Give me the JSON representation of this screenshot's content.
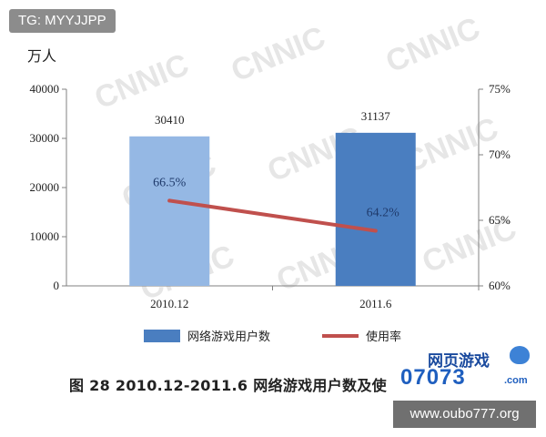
{
  "watermark_tag": "TG: MYYJJPP",
  "chart_data": {
    "type": "bar",
    "categories": [
      "2010.12",
      "2011.6"
    ],
    "series": [
      {
        "name": "网络游戏用户数",
        "type": "bar",
        "axis": "left",
        "values": [
          30410,
          31137
        ],
        "labels": [
          "30410",
          "31137"
        ],
        "colors": [
          "#95b8e4",
          "#4a7ec0"
        ]
      },
      {
        "name": "使用率",
        "type": "line",
        "axis": "right",
        "values": [
          66.5,
          64.2
        ],
        "labels": [
          "66.5%",
          "64.2%"
        ],
        "color": "#c0504d"
      }
    ],
    "y_left": {
      "unit": "万人",
      "ylim": [
        0,
        40000
      ],
      "ticks": [
        "40000",
        "30000",
        "20000",
        "10000",
        "0"
      ]
    },
    "y_right": {
      "ylim": [
        60,
        75
      ],
      "ticks": [
        "75%",
        "70%",
        "65%",
        "60%"
      ]
    },
    "grid": false,
    "legend_position": "bottom",
    "caption": "图 28   2010.12-2011.6 网络游戏用户数及使"
  },
  "logo": {
    "cn_text": "网页游戏",
    "number": "07073",
    "domain": ".com"
  },
  "url_badge": "www.oubo777.org"
}
